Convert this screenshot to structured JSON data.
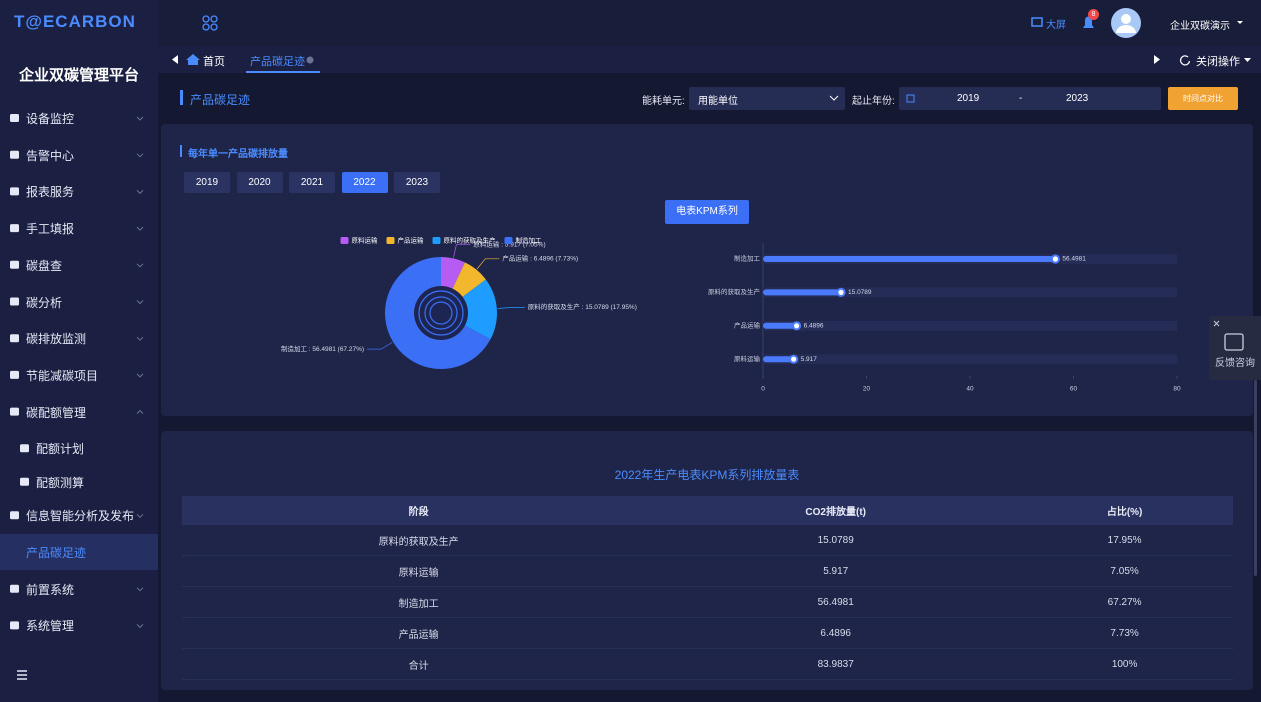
{
  "header": {
    "logo": "T@ECARBON",
    "big_screen": "大屏",
    "notification_count": "8",
    "user": "企业双碳演示"
  },
  "sidebar": {
    "title": "企业双碳管理平台",
    "active": "产品碳足迹",
    "items": [
      {
        "label": "设备监控"
      },
      {
        "label": "告警中心"
      },
      {
        "label": "报表服务"
      },
      {
        "label": "手工填报"
      },
      {
        "label": "碳盘查"
      },
      {
        "label": "碳分析"
      },
      {
        "label": "碳排放监测"
      },
      {
        "label": "节能减碳项目"
      },
      {
        "label": "碳配额管理",
        "children": [
          "配额计划",
          "配额测算"
        ]
      },
      {
        "label": "信息智能分析及发布"
      },
      {
        "label": "产品碳足迹"
      },
      {
        "label": "前置系统"
      },
      {
        "label": "系统管理"
      }
    ]
  },
  "tabs": {
    "items": [
      "首页",
      "产品碳足迹"
    ],
    "close": "关闭操作"
  },
  "toolbar": {
    "title": "产品碳足迹",
    "unit_label": "能耗单元:",
    "unit_value": "用能单位",
    "year_label": "起止年份:",
    "start_year": "2019",
    "separator": "-",
    "end_year": "2023",
    "compare_button": "时间点对比"
  },
  "panel": {
    "title": "每年单一产品碳排放量",
    "years": [
      "2019",
      "2020",
      "2021",
      "2022",
      "2023"
    ],
    "active_year": "2022",
    "series_button": "电表KPM系列"
  },
  "chart_data": [
    {
      "type": "pie",
      "legend": "top",
      "categories": [
        "原料运输",
        "产品运输",
        "原料的获取及生产",
        "制造加工"
      ],
      "values": [
        5.917,
        6.4896,
        15.0789,
        56.4981
      ],
      "value_labels": [
        "原料运输 : 5.917 (7.05%)",
        "产品运输 : 6.4896 (7.73%)",
        "原料的获取及生产 : 15.0789 (17.95%)",
        "制造加工 : 56.4981 (67.27%)"
      ],
      "colors": [
        "#b65cf3",
        "#f2b72c",
        "#1f9cff",
        "#3b6ff6"
      ]
    },
    {
      "type": "bar",
      "orientation": "horizontal",
      "categories": [
        "制造加工",
        "原料的获取及生产",
        "产品运输",
        "原料运输"
      ],
      "values": [
        56.4981,
        15.0789,
        6.4896,
        5.917
      ],
      "color": "#4a7bff",
      "xlim": [
        0,
        80
      ],
      "xticks": [
        0,
        20,
        40,
        60,
        80
      ]
    }
  ],
  "table": {
    "title": "2022年生产电表KPM系列排放量表",
    "columns": [
      "阶段",
      "CO2排放量(t)",
      "占比(%)"
    ],
    "rows": [
      [
        "原料的获取及生产",
        "15.0789",
        "17.95%"
      ],
      [
        "原料运输",
        "5.917",
        "7.05%"
      ],
      [
        "制造加工",
        "56.4981",
        "67.27%"
      ],
      [
        "产品运输",
        "6.4896",
        "7.73%"
      ],
      [
        "合计",
        "83.9837",
        "100%"
      ]
    ]
  },
  "feedback": "反馈咨询"
}
